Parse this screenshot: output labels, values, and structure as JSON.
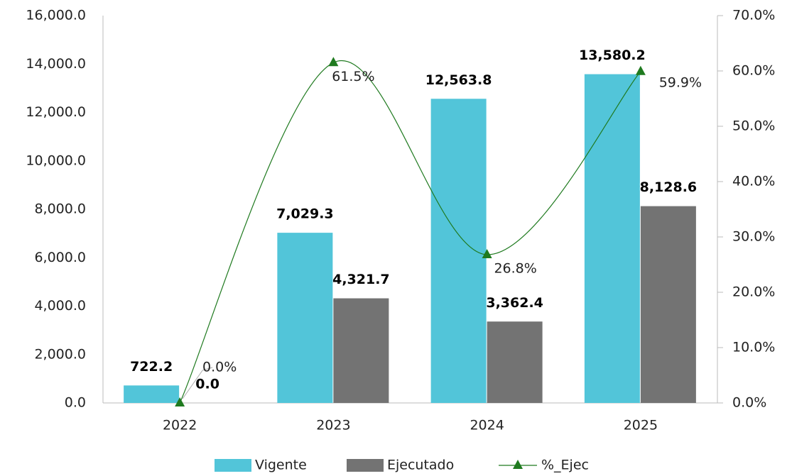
{
  "chart_data": {
    "type": "bar",
    "categories": [
      "2022",
      "2023",
      "2024",
      "2025"
    ],
    "series": [
      {
        "name": "Vigente",
        "color": "#52c5d9",
        "values": [
          722.2,
          7029.3,
          12563.8,
          13580.2
        ],
        "value_labels": [
          "722.2",
          "7,029.3",
          "12,563.8",
          "13,580.2"
        ]
      },
      {
        "name": "Ejecutado",
        "color": "#737373",
        "values": [
          0,
          4321.7,
          3362.4,
          8128.6
        ],
        "value_labels": [
          "0.0",
          "4,321.7",
          "3,362.4",
          "8,128.6"
        ]
      },
      {
        "name": "%_Ejec",
        "type": "line",
        "axis": "y2",
        "color": "#1f7a1f",
        "values": [
          0,
          61.5,
          26.8,
          59.9
        ],
        "value_labels": [
          "0.0%",
          "61.5%",
          "26.8%",
          "59.9%"
        ]
      }
    ],
    "ylim": [
      0,
      16000
    ],
    "yticks": [
      {
        "value": 0,
        "label": "0.0"
      },
      {
        "value": 2000,
        "label": "2,000.0"
      },
      {
        "value": 4000,
        "label": "4,000.0"
      },
      {
        "value": 6000,
        "label": "6,000.0"
      },
      {
        "value": 8000,
        "label": "8,000.0"
      },
      {
        "value": 10000,
        "label": "10,000.0"
      },
      {
        "value": 12000,
        "label": "12,000.0"
      },
      {
        "value": 14000,
        "label": "14,000.0"
      },
      {
        "value": 16000,
        "label": "16,000.0"
      }
    ],
    "y2lim": [
      0,
      70
    ],
    "y2ticks": [
      {
        "value": 0,
        "label": "0.0%"
      },
      {
        "value": 10,
        "label": "10.0%"
      },
      {
        "value": 20,
        "label": "20.0%"
      },
      {
        "value": 30,
        "label": "30.0%"
      },
      {
        "value": 40,
        "label": "40.0%"
      },
      {
        "value": 50,
        "label": "50.0%"
      },
      {
        "value": 60,
        "label": "60.0%"
      },
      {
        "value": 70,
        "label": "70.0%"
      }
    ],
    "grid": false,
    "legend": "bottom"
  }
}
